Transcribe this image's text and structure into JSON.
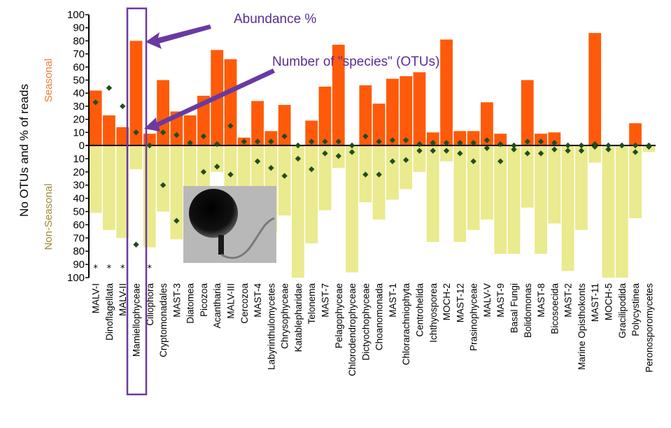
{
  "chart_data": {
    "type": "bar",
    "ylabel": "No OTUs and % of reads",
    "upper_label": "Seasonal",
    "lower_label": "Non-Seasonal",
    "upper_ticks": [
      "100",
      "90",
      "80",
      "70",
      "60",
      "50",
      "40",
      "30",
      "20",
      "10",
      "0"
    ],
    "lower_ticks": [
      "10",
      "20",
      "30",
      "40",
      "50",
      "60",
      "70",
      "80",
      "90",
      "100"
    ],
    "ylim": [
      -100,
      100
    ],
    "colors": {
      "seasonal": "#ff5a0a",
      "non_seasonal": "#eaea8e",
      "otu_marker": "#1f4d1f",
      "highlight": "#6a3aa0",
      "callout": "#5b2d91",
      "upper_label": "#f07b3a",
      "lower_label": "#9a8a3a"
    },
    "annotations": {
      "abundance": "Abundance %",
      "species": "Number of \"species\" (OTUs)"
    },
    "highlight_category": "Mamiellophyceae",
    "categories": [
      "MALV-I",
      "Dinoflagellata",
      "MALV-II",
      "Mamiellophyceae",
      "Ciliophora",
      "Cryptomonadales",
      "MAST-3",
      "Diatomea",
      "Picozoa",
      "Acantharia",
      "MALV-III",
      "Cercozoa",
      "MAST-4",
      "Labyrinthulomycetes",
      "Chrysophyceae",
      "Katablepharidae",
      "Telonema",
      "MAST-7",
      "Pelagophyceae",
      "Chlorodendrophyceae",
      "Dictyochophyceae",
      "Choanomonada",
      "MAST-1",
      "Chlorarachniophyta",
      "Centrohelida",
      "Ichthyosporea",
      "MOCH-2",
      "MAST-12",
      "Prasinophyceae",
      "MALV-V",
      "MAST-9",
      "Basal Fungi",
      "Bolidomonas",
      "MAST-8",
      "Bicosoecida",
      "MAST-2",
      "Marine Opisthokonts",
      "MAST-11",
      "MOCH-5",
      "Gracilipodida",
      "Polycystinea",
      "Peronosporomycetes"
    ],
    "series": [
      {
        "name": "Seasonal",
        "values": [
          42,
          23,
          14,
          80,
          9,
          50,
          26,
          23,
          38,
          73,
          66,
          6,
          34,
          11,
          31,
          0,
          19,
          45,
          77,
          0,
          46,
          32,
          51,
          53,
          56,
          10,
          81,
          11,
          11,
          33,
          9,
          0,
          50,
          9,
          10,
          0,
          0,
          86,
          0,
          0,
          17,
          0
        ]
      },
      {
        "name": "Non-Seasonal",
        "values": [
          51,
          64,
          70,
          18,
          77,
          50,
          71,
          77,
          62,
          20,
          34,
          35,
          66,
          65,
          53,
          100,
          74,
          49,
          17,
          96,
          43,
          56,
          41,
          33,
          20,
          73,
          12,
          73,
          64,
          56,
          82,
          82,
          47,
          82,
          59,
          95,
          64,
          13,
          100,
          100,
          55,
          5
        ]
      },
      {
        "name": "Seasonal OTUs",
        "values": [
          33,
          44,
          30,
          10,
          0,
          10,
          8,
          2,
          7,
          1,
          15,
          3,
          3,
          3,
          7,
          0,
          3,
          3,
          3,
          0,
          7,
          3,
          4,
          4,
          1,
          2,
          2,
          2,
          2,
          4,
          1,
          0,
          3,
          3,
          2,
          0,
          0,
          1,
          0,
          0,
          0,
          0
        ]
      },
      {
        "name": "Non-Seasonal OTUs",
        "values": [
          0,
          0,
          0,
          75,
          0,
          30,
          57,
          0,
          20,
          16,
          22,
          0,
          12,
          17,
          23,
          10,
          18,
          6,
          8,
          5,
          22,
          22,
          12,
          11,
          4,
          4,
          4,
          6,
          12,
          2,
          12,
          3,
          6,
          6,
          3,
          4,
          4,
          1,
          3,
          0,
          5,
          1
        ]
      }
    ],
    "star_categories": [
      "MALV-I",
      "Dinoflagellata",
      "MALV-II",
      "Ciliophora"
    ],
    "star_symbol": "*",
    "inset_image": "Mamiellophyceae cell micrograph"
  }
}
